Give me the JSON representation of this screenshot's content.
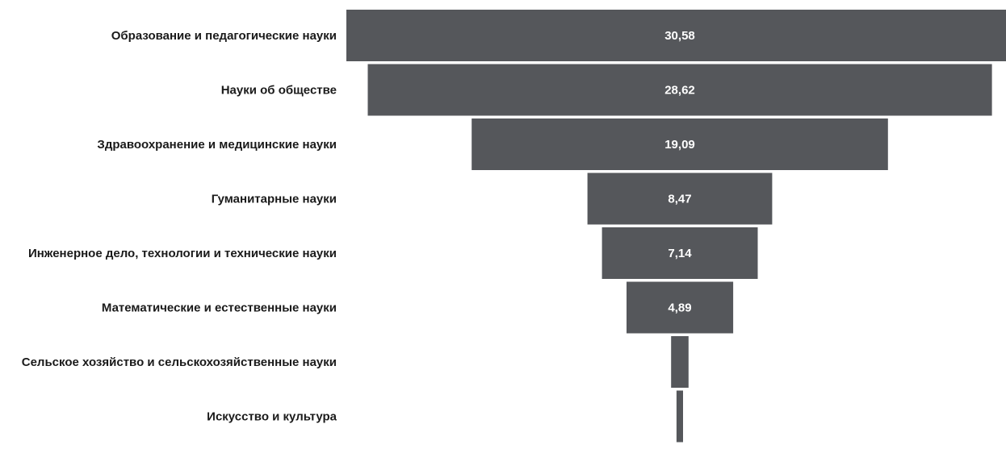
{
  "chart_data": {
    "type": "bar",
    "orientation": "horizontal-funnel",
    "categories": [
      "Образование и педагогические науки",
      "Науки об обществе",
      "Здравоохранение и медицинские науки",
      "Гуманитарные науки",
      "Инженерное дело, технологии и технические науки",
      "Математические и естественные науки",
      "Сельское хозяйство и сельскохозяйственные науки",
      "Искусство и культура"
    ],
    "values": [
      30.58,
      28.62,
      19.09,
      8.47,
      7.14,
      4.89,
      0.8,
      0.3
    ],
    "data_labels": [
      "30,58",
      "28,62",
      "19,09",
      "8,47",
      "7,14",
      "4,89",
      "",
      ""
    ],
    "title": "",
    "xlabel": "",
    "ylabel": "",
    "grid": false,
    "legend": "none",
    "bar_color": "#55575b",
    "label_color": "#1a1a1a",
    "value_label_color": "#ffffff"
  }
}
